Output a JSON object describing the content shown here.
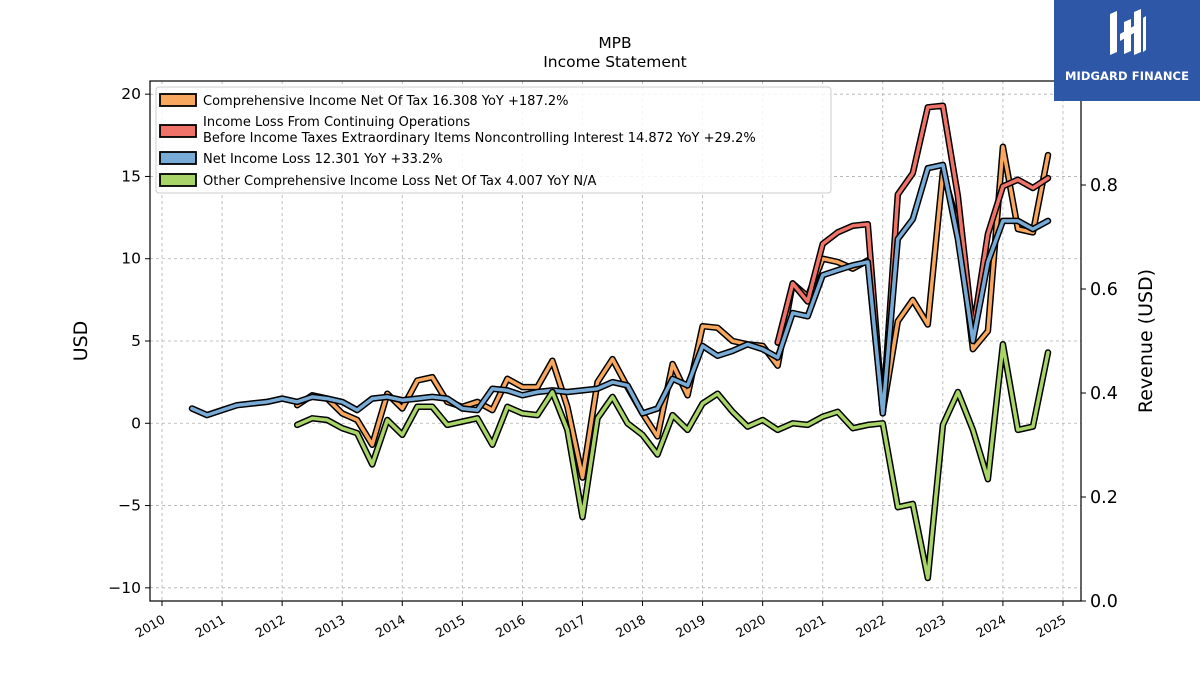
{
  "chart_data": {
    "type": "line",
    "title": "MPB",
    "subtitle": "Income Statement",
    "ylabel": "USD",
    "ylabel_right": "Revenue (USD)",
    "ylim": [
      -10.8,
      20.8
    ],
    "ylim_right": [
      0.0,
      1.0
    ],
    "xlim": [
      2009.8,
      2025.3
    ],
    "yticks": [
      -10,
      -5,
      0,
      5,
      10,
      15,
      20
    ],
    "ytick_labels": [
      "−10",
      "−5",
      "0",
      "5",
      "10",
      "15",
      "20"
    ],
    "yticks_right": [
      0.0,
      0.2,
      0.4,
      0.6,
      0.8
    ],
    "ytick_right_labels": [
      "0.0",
      "0.2",
      "0.4",
      "0.6",
      "0.8"
    ],
    "xticks": [
      2010,
      2011,
      2012,
      2013,
      2014,
      2015,
      2016,
      2017,
      2018,
      2019,
      2020,
      2021,
      2022,
      2023,
      2024,
      2025
    ],
    "xtick_labels": [
      "2010",
      "2011",
      "2012",
      "2013",
      "2014",
      "2015",
      "2016",
      "2017",
      "2018",
      "2019",
      "2020",
      "2021",
      "2022",
      "2023",
      "2024",
      "2025"
    ],
    "grid": true,
    "legend_position": "top-left",
    "series": [
      {
        "name": "Comprehensive Income Net Of Tax  16.308 YoY +187.2%",
        "color": "#f7a85e",
        "x": [
          2012.25,
          2012.5,
          2012.75,
          2013.0,
          2013.25,
          2013.5,
          2013.75,
          2014.0,
          2014.25,
          2014.5,
          2014.75,
          2015.0,
          2015.25,
          2015.5,
          2015.75,
          2016.0,
          2016.25,
          2016.5,
          2016.75,
          2017.0,
          2017.25,
          2017.5,
          2017.75,
          2018.0,
          2018.25,
          2018.5,
          2018.75,
          2019.0,
          2019.25,
          2019.5,
          2019.75,
          2020.0,
          2020.25,
          2020.5,
          2020.75,
          2021.0,
          2021.25,
          2021.5,
          2021.75,
          2022.0,
          2022.25,
          2022.5,
          2022.75,
          2023.0,
          2023.25,
          2023.5,
          2023.75,
          2024.0,
          2024.25,
          2024.5,
          2024.75
        ],
        "y": [
          1.1,
          1.7,
          1.5,
          0.6,
          0.2,
          -1.3,
          1.8,
          0.9,
          2.6,
          2.8,
          1.3,
          1.0,
          1.3,
          0.8,
          2.7,
          2.2,
          2.2,
          3.8,
          1.0,
          -3.3,
          2.5,
          3.9,
          2.2,
          0.6,
          -0.8,
          3.6,
          1.7,
          5.9,
          5.8,
          5.0,
          4.8,
          4.7,
          3.5,
          8.5,
          7.7,
          10.0,
          9.8,
          9.4,
          9.9,
          0.7,
          6.2,
          7.5,
          6.0,
          15.3,
          12.0,
          4.5,
          5.6,
          16.8,
          11.8,
          11.6,
          16.3
        ]
      },
      {
        "name": "Income Loss From Continuing Operations\nBefore Income Taxes Extraordinary Items Noncontrolling Interest  14.872 YoY +29.2%",
        "color": "#f0736a",
        "x": [
          2020.25,
          2020.5,
          2020.75,
          2021.0,
          2021.25,
          2021.5,
          2021.75,
          2022.0,
          2022.25,
          2022.5,
          2022.75,
          2023.0,
          2023.25,
          2023.5,
          2023.75,
          2024.0,
          2024.25,
          2024.5,
          2024.75
        ],
        "y": [
          4.9,
          8.5,
          7.4,
          10.9,
          11.6,
          12.0,
          12.1,
          0.6,
          13.9,
          15.2,
          19.2,
          19.3,
          13.8,
          5.6,
          11.5,
          14.4,
          14.8,
          14.3,
          14.9
        ]
      },
      {
        "name": "Net Income Loss  12.301 YoY +33.2%",
        "color": "#78acd6",
        "x": [
          2010.5,
          2010.75,
          2011.0,
          2011.25,
          2011.5,
          2011.75,
          2012.0,
          2012.25,
          2012.5,
          2012.75,
          2013.0,
          2013.25,
          2013.5,
          2013.75,
          2014.0,
          2014.25,
          2014.5,
          2014.75,
          2015.0,
          2015.25,
          2015.5,
          2015.75,
          2016.0,
          2016.25,
          2016.5,
          2016.75,
          2017.0,
          2017.25,
          2017.5,
          2017.75,
          2018.0,
          2018.25,
          2018.5,
          2018.75,
          2019.0,
          2019.25,
          2019.5,
          2019.75,
          2020.0,
          2020.25,
          2020.5,
          2020.75,
          2021.0,
          2021.25,
          2021.5,
          2021.75,
          2022.0,
          2022.25,
          2022.5,
          2022.75,
          2023.0,
          2023.25,
          2023.5,
          2023.75,
          2024.0,
          2024.25,
          2024.5,
          2024.75
        ],
        "y": [
          0.9,
          0.5,
          0.8,
          1.1,
          1.2,
          1.3,
          1.5,
          1.3,
          1.6,
          1.5,
          1.3,
          0.8,
          1.5,
          1.6,
          1.4,
          1.5,
          1.6,
          1.5,
          0.9,
          0.8,
          2.1,
          2.0,
          1.7,
          1.9,
          2.0,
          1.9,
          2.0,
          2.1,
          2.5,
          2.3,
          0.6,
          0.9,
          2.7,
          2.3,
          4.7,
          4.1,
          4.4,
          4.8,
          4.5,
          4.0,
          6.7,
          6.5,
          9.0,
          9.3,
          9.6,
          9.8,
          0.6,
          11.2,
          12.4,
          15.5,
          15.7,
          11.2,
          5.0,
          9.8,
          12.3,
          12.3,
          11.8,
          12.3
        ]
      },
      {
        "name": "Other Comprehensive Income Loss Net Of Tax  4.007 YoY N/A",
        "color": "#a8d468",
        "x": [
          2012.25,
          2012.5,
          2012.75,
          2013.0,
          2013.25,
          2013.5,
          2013.75,
          2014.0,
          2014.25,
          2014.5,
          2014.75,
          2015.0,
          2015.25,
          2015.5,
          2015.75,
          2016.0,
          2016.25,
          2016.5,
          2016.75,
          2017.0,
          2017.25,
          2017.5,
          2017.75,
          2018.0,
          2018.25,
          2018.5,
          2018.75,
          2019.0,
          2019.25,
          2019.5,
          2019.75,
          2020.0,
          2020.25,
          2020.5,
          2020.75,
          2021.0,
          2021.25,
          2021.5,
          2021.75,
          2022.0,
          2022.25,
          2022.5,
          2022.75,
          2023.0,
          2023.25,
          2023.5,
          2023.75,
          2024.0,
          2024.25,
          2024.5,
          2024.75
        ],
        "y": [
          -0.1,
          0.3,
          0.2,
          -0.3,
          -0.6,
          -2.5,
          0.2,
          -0.7,
          1.0,
          1.0,
          -0.1,
          0.1,
          0.3,
          -1.3,
          1.0,
          0.6,
          0.5,
          1.9,
          -0.4,
          -5.7,
          0.3,
          1.6,
          0.0,
          -0.7,
          -1.9,
          0.5,
          -0.4,
          1.2,
          1.8,
          0.7,
          -0.2,
          0.2,
          -0.4,
          0.0,
          -0.1,
          0.4,
          0.7,
          -0.3,
          -0.1,
          0.0,
          -5.1,
          -4.9,
          -9.4,
          -0.1,
          1.9,
          -0.4,
          -3.4,
          4.8,
          -0.4,
          -0.2,
          4.3
        ]
      }
    ]
  },
  "logo": {
    "text": "MIDGARD FINANCE",
    "color": "#2f57a8"
  }
}
